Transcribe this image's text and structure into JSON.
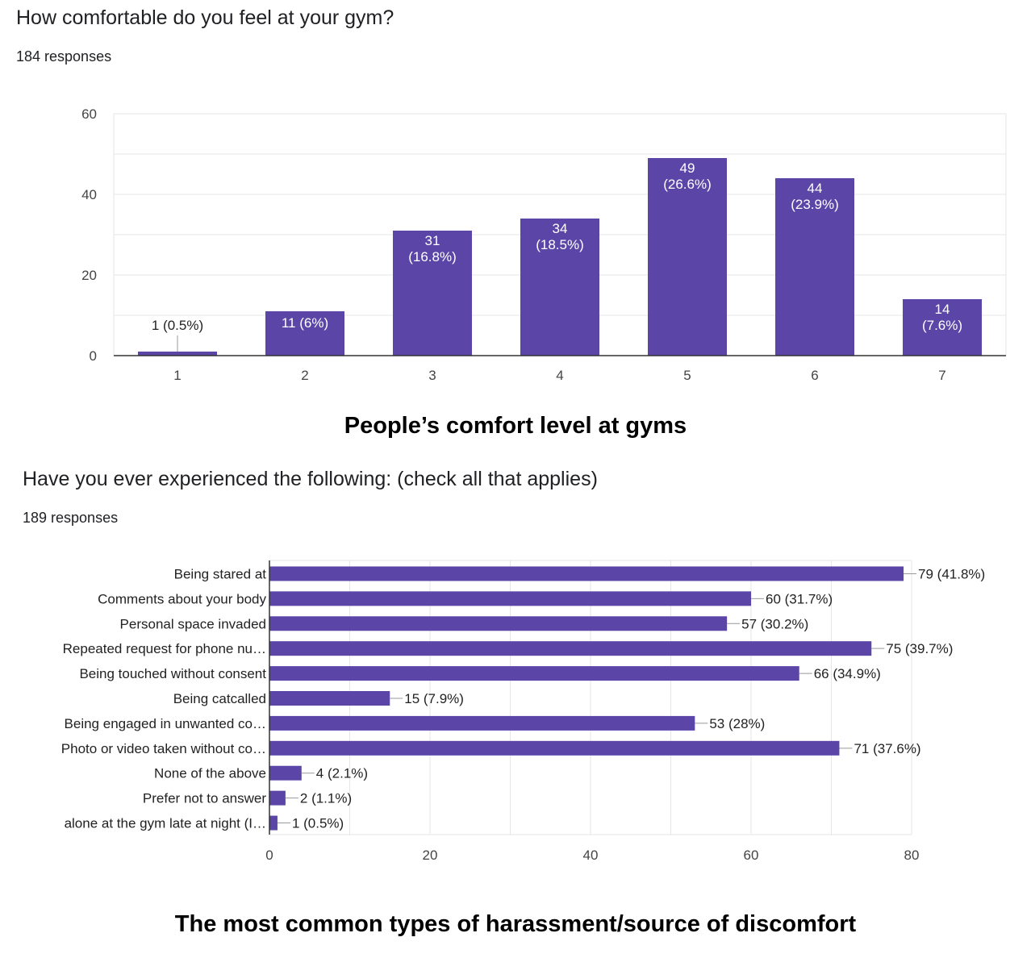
{
  "colors": {
    "bar": "#5b46a8",
    "grid": "#e6e6e6",
    "axis": "#333333",
    "tick_text": "#444444",
    "label_text": "#222222"
  },
  "chart_data": [
    {
      "type": "bar",
      "title": "How comfortable do you feel at your gym?",
      "subtitle": "184 responses",
      "caption": "People’s comfort level at gyms",
      "categories": [
        "1",
        "2",
        "3",
        "4",
        "5",
        "6",
        "7"
      ],
      "values": [
        1,
        11,
        31,
        34,
        49,
        44,
        14
      ],
      "data_labels": [
        "1 (0.5%)",
        "11 (6%)",
        "31 (16.8%)",
        "34 (18.5%)",
        "49 (26.6%)",
        "44 (23.9%)",
        "14 (7.6%)"
      ],
      "yticks": [
        0,
        20,
        40,
        60
      ],
      "ylim": [
        0,
        60
      ],
      "xlabel": "",
      "ylabel": "",
      "grid": true
    },
    {
      "type": "bar",
      "orientation": "horizontal",
      "title": "Have you ever experienced the following: (check all that applies)",
      "subtitle": "189 responses",
      "caption": "The most common types of harassment/source of discomfort",
      "categories": [
        "Being stared at",
        "Comments about your body",
        "Personal space invaded",
        "Repeated request for phone nu…",
        "Being touched without consent",
        "Being catcalled",
        "Being engaged in unwanted co…",
        "Photo or video taken without co…",
        "None of the above",
        "Prefer not to answer",
        "alone at the gym late at night (I…"
      ],
      "values": [
        79,
        60,
        57,
        75,
        66,
        15,
        53,
        71,
        4,
        2,
        1
      ],
      "data_labels": [
        "79 (41.8%)",
        "60 (31.7%)",
        "57 (30.2%)",
        "75 (39.7%)",
        "66 (34.9%)",
        "15 (7.9%)",
        "53 (28%)",
        "71 (37.6%)",
        "4 (2.1%)",
        "2 (1.1%)",
        "1 (0.5%)"
      ],
      "xticks": [
        0,
        20,
        40,
        60,
        80
      ],
      "xlim": [
        0,
        80
      ],
      "xlabel": "",
      "ylabel": "",
      "grid": true
    }
  ]
}
